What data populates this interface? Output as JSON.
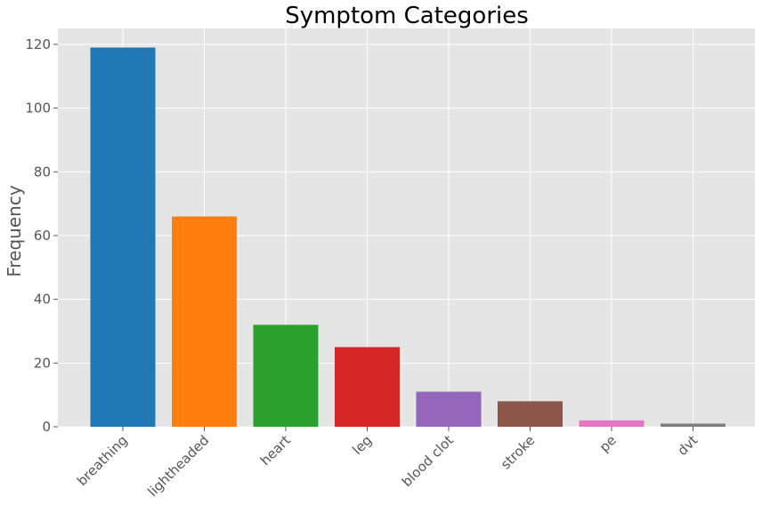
{
  "chart_data": {
    "type": "bar",
    "title": "Symptom Categories",
    "xlabel": "",
    "ylabel": "Frequency",
    "categories": [
      "breathing",
      "lightheaded",
      "heart",
      "leg",
      "blood clot",
      "stroke",
      "pe",
      "dvt"
    ],
    "values": [
      119,
      66,
      32,
      25,
      11,
      8,
      2,
      1
    ],
    "colors": [
      "#1f77b4",
      "#ff7f0e",
      "#2ca02c",
      "#d62728",
      "#9467bd",
      "#8c564b",
      "#e377c2",
      "#7f7f7f"
    ],
    "ylim": [
      0,
      125
    ],
    "yticks": [
      0,
      20,
      40,
      60,
      80,
      100,
      120
    ],
    "grid": true,
    "background": "#e5e5e5",
    "grid_color": "#ffffff"
  }
}
